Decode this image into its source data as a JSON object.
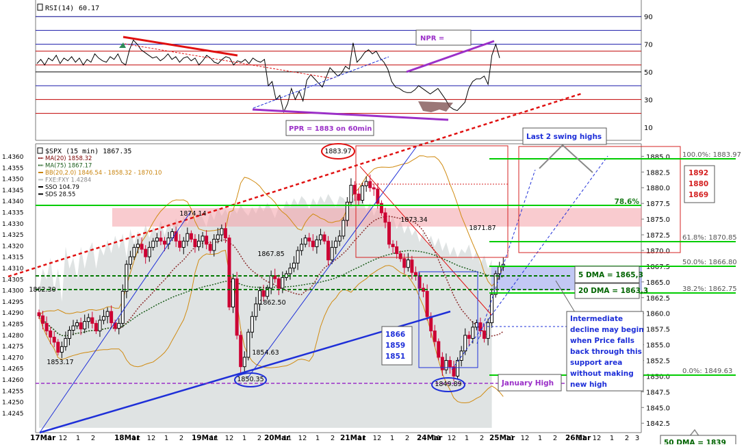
{
  "chart_data": [
    {
      "type": "line",
      "title": "RSI(14)",
      "value_text": "60.17",
      "ylim": [
        0,
        100
      ],
      "y_ticks": [
        10,
        30,
        50,
        70,
        90
      ],
      "horizontal_levels": [
        {
          "value": 90,
          "color": "#00008b"
        },
        {
          "value": 80,
          "color": "#1a1aaa"
        },
        {
          "value": 70,
          "color": "#1a1aaa"
        },
        {
          "value": 65,
          "color": "#c00000"
        },
        {
          "value": 55,
          "color": "#c00000"
        },
        {
          "value": 50,
          "color": "#000000"
        },
        {
          "value": 40,
          "color": "#1a1aaa"
        },
        {
          "value": 30,
          "color": "#c00000"
        },
        {
          "value": 20,
          "color": "#c00000"
        }
      ],
      "values": [
        56,
        59,
        55,
        60,
        58,
        62,
        56,
        60,
        58,
        61,
        57,
        60,
        55,
        59,
        57,
        63,
        60,
        58,
        57,
        61,
        59,
        63,
        57,
        55,
        66,
        73,
        70,
        66,
        64,
        62,
        60,
        61,
        58,
        60,
        63,
        59,
        61,
        57,
        60,
        61,
        58,
        60,
        55,
        58,
        62,
        60,
        57,
        56,
        59,
        61,
        60,
        55,
        58,
        57,
        59,
        56,
        60,
        58,
        57,
        59,
        40,
        43,
        30,
        33,
        21,
        27,
        38,
        30,
        36,
        29,
        44,
        48,
        45,
        42,
        39,
        46,
        53,
        50,
        47,
        49,
        54,
        52,
        71,
        57,
        60,
        64,
        66,
        63,
        65,
        60,
        57,
        52,
        43,
        39,
        38,
        36,
        35,
        35,
        37,
        40,
        38,
        36,
        34,
        36,
        38,
        34,
        30,
        25,
        23,
        22,
        25,
        28,
        38,
        43,
        45,
        45,
        47,
        41,
        62,
        70,
        60
      ],
      "annotations": {
        "npr_label": "NPR =",
        "ppr_label": "PPR = 1883 on 60min"
      }
    },
    {
      "type": "candlestick",
      "title": "$SPX (15 min) 1867.35",
      "legend": [
        {
          "name": "MA(20) 1858.32",
          "color": "#7a0000"
        },
        {
          "name": "MA(75) 1867.17",
          "color": "#1a5c1a"
        },
        {
          "name": "BB(20,2.0) 1846.54 - 1858.32 - 1870.10",
          "color": "#c8820a"
        },
        {
          "name": "FXE:FXY 1.4284",
          "color": "#b9c2c2"
        },
        {
          "name": "SSO 104.79",
          "color": "#000000"
        },
        {
          "name": "SDS 28.55",
          "color": "#000000"
        }
      ],
      "ylim": [
        1841,
        1887
      ],
      "y_ticks": [
        "1885.0",
        "1882.5",
        "1880.0",
        "1877.5",
        "1875.0",
        "1872.5",
        "1870.0",
        "1867.5",
        "1865.0",
        "1862.5",
        "1860.0",
        "1857.5",
        "1855.0",
        "1852.5",
        "1850.0",
        "1847.5",
        "1845.0",
        "1842.5"
      ],
      "y_ticks_left": [
        "1.4360",
        "1.4355",
        "1.4350",
        "1.4345",
        "1.4340",
        "1.4335",
        "1.4330",
        "1.4325",
        "1.4320",
        "1.4315",
        "1.4310",
        "1.4305",
        "1.4300",
        "1.4295",
        "1.4290",
        "1.4285",
        "1.4280",
        "1.4275",
        "1.4270",
        "1.4265",
        "1.4260",
        "1.4255",
        "1.4250",
        "1.4245"
      ],
      "x_ticks": [
        "17Mar",
        "11",
        "12",
        "1",
        "2",
        "18Mar",
        "11",
        "12",
        "1",
        "2",
        "19Mar",
        "11",
        "12",
        "1",
        "2",
        "20Mar",
        "11",
        "12",
        "1",
        "2",
        "21Mar",
        "11",
        "12",
        "1",
        "2",
        "24Mar",
        "11",
        "12",
        "1",
        "2",
        "25Mar",
        "11",
        "12",
        "1",
        "2",
        "26Mar",
        "11",
        "12",
        "1",
        "2",
        "3"
      ],
      "closes": [
        1859.6,
        1858.4,
        1857.2,
        1856.2,
        1855.4,
        1853.8,
        1854.7,
        1856.0,
        1857.3,
        1858.0,
        1858.5,
        1857.5,
        1858.7,
        1859.3,
        1858.4,
        1857.2,
        1858.9,
        1859.5,
        1860.3,
        1858.5,
        1857.6,
        1858.4,
        1863.5,
        1867.8,
        1869.0,
        1870.5,
        1871.0,
        1870.2,
        1869.0,
        1870.5,
        1871.5,
        1872.0,
        1871.5,
        1871.0,
        1872.0,
        1873.0,
        1871.5,
        1870.5,
        1871.5,
        1872.7,
        1871.8,
        1870.6,
        1871.5,
        1872.3,
        1871.0,
        1870.0,
        1871.8,
        1872.5,
        1873.5,
        1872.0,
        1861.0,
        1865.5,
        1856.5,
        1851.5,
        1853.0,
        1857.0,
        1859.5,
        1861.5,
        1863.6,
        1862.7,
        1864.0,
        1866.0,
        1865.5,
        1864.0,
        1865.7,
        1866.3,
        1867.2,
        1868.0,
        1870.0,
        1871.0,
        1872.0,
        1871.5,
        1870.6,
        1871.7,
        1872.5,
        1871.5,
        1868.5,
        1870.5,
        1871.5,
        1872.3,
        1874.8,
        1877.7,
        1880.4,
        1879.0,
        1878.0,
        1880.3,
        1881.0,
        1880.0,
        1879.8,
        1877.5,
        1876.0,
        1874.5,
        1871.0,
        1870.6,
        1869.5,
        1868.7,
        1867.3,
        1868.5,
        1866.5,
        1866.0,
        1864.0,
        1863.5,
        1859.5,
        1857.2,
        1855.5,
        1853.0,
        1851.0,
        1852.5,
        1851.5,
        1850.0,
        1852.5,
        1854.0,
        1856.5,
        1856.0,
        1857.8,
        1858.5,
        1857.2,
        1856.0,
        1858.5,
        1863.0,
        1866.3,
        1867.4,
        1867.8
      ],
      "annotations": {
        "price_labels": [
          "1874.14",
          "1873.34",
          "1883.97",
          "1871.87",
          "1867.85",
          "1862.50",
          "1862.30",
          "1854.63",
          "1853.17",
          "1850.35",
          "1849.89"
        ],
        "fib_levels": [
          {
            "label": "100.0%: 1883.97",
            "value": 1883.97
          },
          {
            "label": "61.8%: 1870.85",
            "value": 1870.85
          },
          {
            "label": "50.0%: 1866.80",
            "value": 1866.8
          },
          {
            "label": "38.2%: 1862.75",
            "value": 1862.75
          },
          {
            "label": "0.0%: 1849.63",
            "value": 1849.63
          }
        ],
        "fib_786": "78.6%",
        "dma5_label": "5 DMA = 1865,3",
        "dma20_label": "20 DMA = 1863,3",
        "dma50_label": "50 DMA = 1839",
        "january_high": "January High",
        "swing_title": "Last 2 swing highs",
        "targets": [
          "1892",
          "1880",
          "1869"
        ],
        "supports": [
          "1866",
          "1859",
          "1851"
        ],
        "note": "Intermediate decline may begin when Price falls back through this support area without making new high"
      }
    }
  ],
  "colors": {
    "up_candle": "#000000",
    "down_candle": "#cc0033",
    "ma20": "#8b2c2c",
    "ma75": "#1a5c1a",
    "bollinger": "#d08a10",
    "fx_area": "#c5cccc",
    "trend_blue": "#1e2fd8",
    "trend_red": "#e01010",
    "support_green": "#00cc00",
    "purple": "#9b30c8",
    "band_pink": "#f4a0a8",
    "band_blue": "#a8b0f0",
    "box_red": "#d42020"
  }
}
